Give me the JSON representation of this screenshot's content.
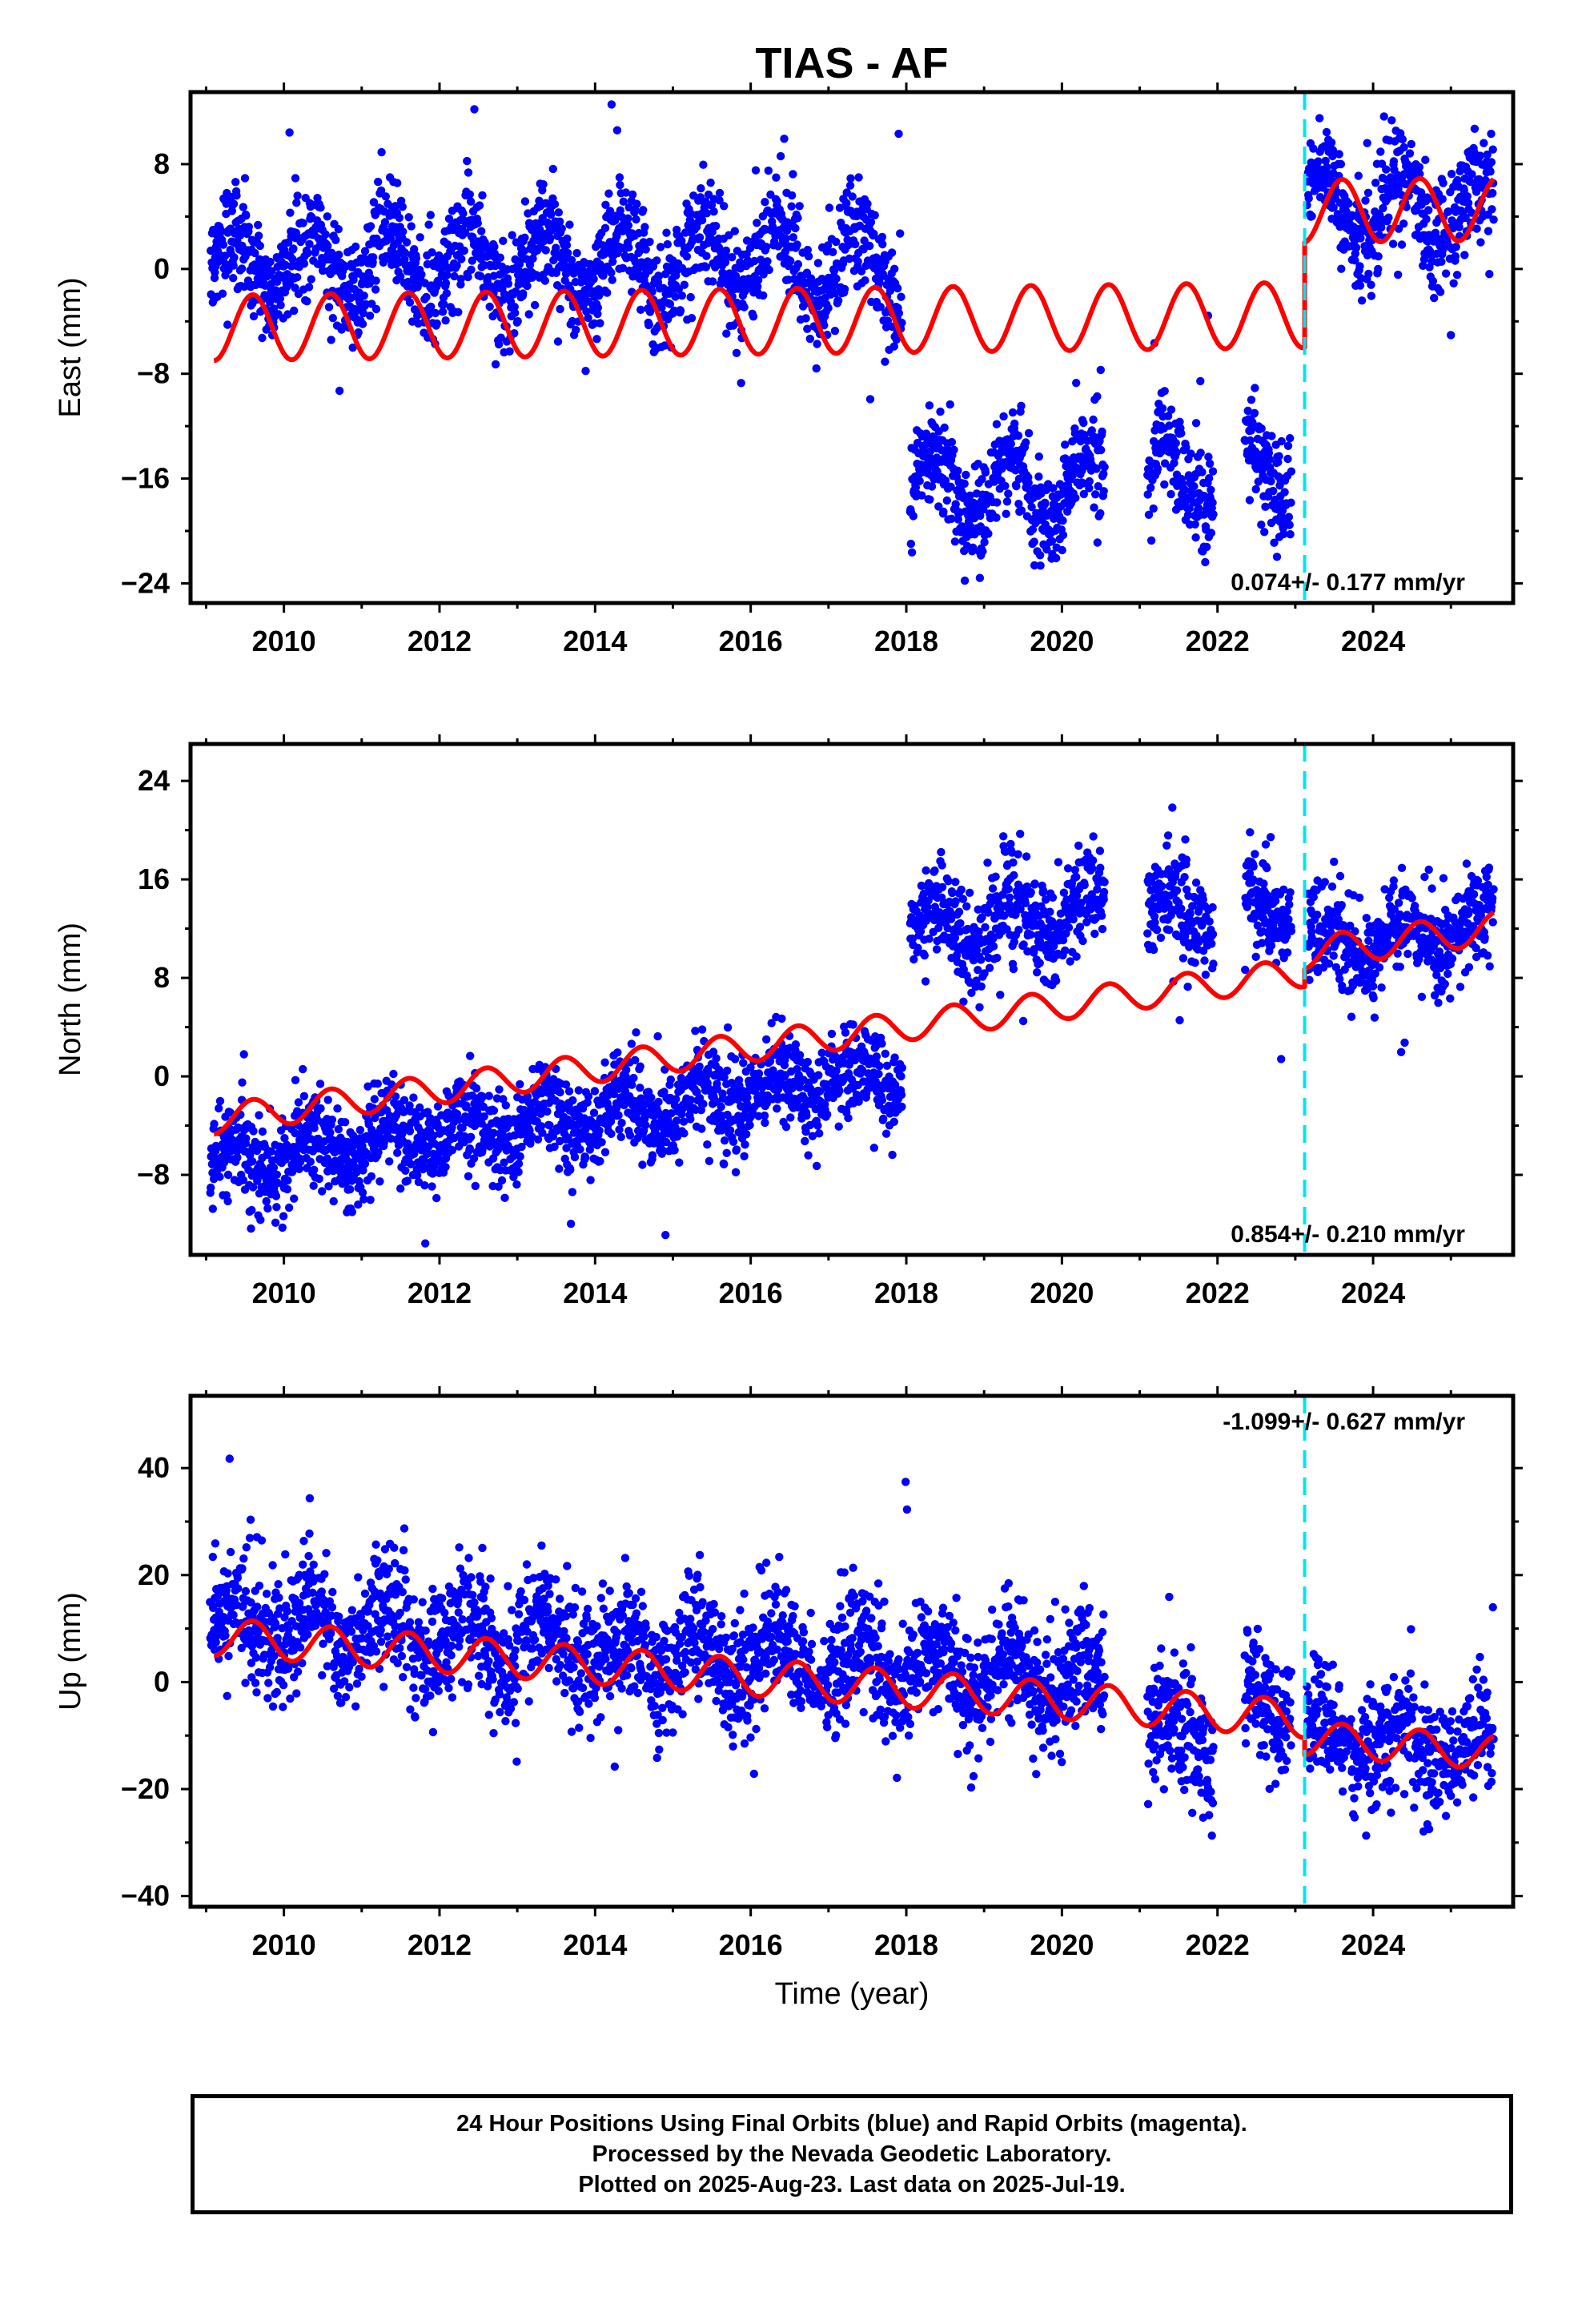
{
  "title": "TIAS - AF",
  "xlabel": "Time (year)",
  "colors": {
    "data": "#0000ff",
    "model": "#ff0000",
    "offset": "#00e5ee",
    "axis": "#000000"
  },
  "offset_epoch": 2023.12,
  "chart_data": [
    {
      "type": "scatter",
      "panel": "east",
      "ylabel": "East (mm)",
      "xlim": [
        2008.8,
        2025.8
      ],
      "ylim": [
        -25.5,
        13.5
      ],
      "xticks": [
        2010,
        2012,
        2014,
        2016,
        2018,
        2020,
        2022,
        2024
      ],
      "yticks": [
        -24,
        -16,
        -8,
        0,
        8
      ],
      "rate_label": "0.074+/- 0.177 mm/yr",
      "rate_position": "bottom-right",
      "grid": false,
      "observation_segments": [
        {
          "start": 2009.05,
          "end": 2017.95,
          "mean": 0.5,
          "trend": 0.0,
          "amplitude": 2.8,
          "noise": 2.0
        },
        {
          "start": 2018.05,
          "end": 2020.55,
          "mean": -16.5,
          "trend": 0.0,
          "amplitude": 2.6,
          "noise": 2.0
        },
        {
          "start": 2021.1,
          "end": 2021.95,
          "mean": -15.8,
          "trend": 0.0,
          "amplitude": 2.4,
          "noise": 2.0
        },
        {
          "start": 2022.35,
          "end": 2022.95,
          "mean": -15.0,
          "trend": 0.0,
          "amplitude": 2.4,
          "noise": 2.0
        },
        {
          "start": 2023.15,
          "end": 2025.55,
          "mean": 4.5,
          "trend": 0.0,
          "amplitude": 2.6,
          "noise": 2.0
        }
      ],
      "model_segments": [
        {
          "start": 2009.1,
          "end": 2023.12,
          "mean": -4.5,
          "trend": 0.07,
          "amplitude": 2.5
        },
        {
          "start": 2023.12,
          "end": 2025.55,
          "mean": 4.4,
          "trend": 0.07,
          "amplitude": 2.4
        }
      ]
    },
    {
      "type": "scatter",
      "panel": "north",
      "ylabel": "North (mm)",
      "xlim": [
        2008.8,
        2025.8
      ],
      "ylim": [
        -14.5,
        27.0
      ],
      "xticks": [
        2010,
        2012,
        2014,
        2016,
        2018,
        2020,
        2022,
        2024
      ],
      "yticks": [
        -8,
        0,
        8,
        16,
        24
      ],
      "rate_label": "0.854+/- 0.210 mm/yr",
      "rate_position": "bottom-right",
      "grid": false,
      "observation_segments": [
        {
          "start": 2009.05,
          "end": 2017.95,
          "mean": -7.0,
          "trend": 0.8,
          "amplitude": 1.5,
          "noise": 1.8
        },
        {
          "start": 2018.05,
          "end": 2020.55,
          "mean": 12.0,
          "trend": 0.5,
          "amplitude": 1.8,
          "noise": 2.0
        },
        {
          "start": 2021.1,
          "end": 2021.95,
          "mean": 13.0,
          "trend": 0.0,
          "amplitude": 1.8,
          "noise": 2.0
        },
        {
          "start": 2022.35,
          "end": 2022.95,
          "mean": 14.0,
          "trend": 0.0,
          "amplitude": 1.8,
          "noise": 2.0
        },
        {
          "start": 2023.15,
          "end": 2025.55,
          "mean": 10.5,
          "trend": 0.6,
          "amplitude": 1.5,
          "noise": 1.8
        }
      ],
      "model_segments": [
        {
          "start": 2009.1,
          "end": 2023.12,
          "mean": -3.5,
          "trend": 0.854,
          "amplitude": 1.2
        },
        {
          "start": 2023.12,
          "end": 2025.55,
          "mean": 10.0,
          "trend": 0.854,
          "amplitude": 1.3
        }
      ]
    },
    {
      "type": "scatter",
      "panel": "up",
      "ylabel": "Up (mm)",
      "xlim": [
        2008.8,
        2025.8
      ],
      "ylim": [
        -42.0,
        53.5
      ],
      "xticks": [
        2010,
        2012,
        2014,
        2016,
        2018,
        2020,
        2022,
        2024
      ],
      "yticks": [
        -40,
        -20,
        0,
        20,
        40
      ],
      "rate_label": "-1.099+/- 0.627 mm/yr",
      "rate_position": "top-right",
      "grid": false,
      "observation_segments": [
        {
          "start": 2009.05,
          "end": 2020.55,
          "mean": 12.0,
          "trend": -1.1,
          "amplitude": 4.5,
          "noise": 5.5
        },
        {
          "start": 2021.1,
          "end": 2021.95,
          "mean": -9.0,
          "trend": 0.0,
          "amplitude": 4.0,
          "noise": 6.0
        },
        {
          "start": 2022.35,
          "end": 2022.95,
          "mean": -4.0,
          "trend": 0.0,
          "amplitude": 4.0,
          "noise": 6.0
        },
        {
          "start": 2023.15,
          "end": 2025.55,
          "mean": -10.0,
          "trend": -1.1,
          "amplitude": 4.0,
          "noise": 5.5
        }
      ],
      "model_segments": [
        {
          "start": 2009.1,
          "end": 2023.12,
          "mean": 8.5,
          "trend": -1.099,
          "amplitude": 3.5
        },
        {
          "start": 2023.12,
          "end": 2025.55,
          "mean": -10.5,
          "trend": -1.099,
          "amplitude": 3.2
        }
      ]
    }
  ],
  "footer": {
    "line1": "24 Hour Positions Using Final Orbits (blue) and Rapid Orbits (magenta).",
    "line2": "Processed by the Nevada Geodetic Laboratory.",
    "line3": "Plotted on 2025-Aug-23. Last data on 2025-Jul-19."
  }
}
